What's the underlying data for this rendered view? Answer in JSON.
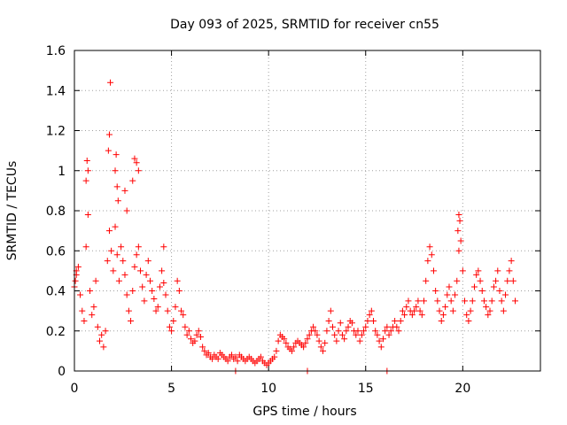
{
  "chart_data": {
    "type": "scatter",
    "title": "Day 093 of 2025, SRMTID for receiver cn55",
    "xlabel": "GPS time / hours",
    "ylabel": "SRMTID / TECUs",
    "xlim": [
      0,
      24
    ],
    "ylim": [
      0,
      1.6
    ],
    "x_ticks": [
      0,
      5,
      10,
      15,
      20
    ],
    "x_tick_labels": [
      "0",
      "5",
      "10",
      "15",
      "20"
    ],
    "y_ticks": [
      0,
      0.2,
      0.4,
      0.6,
      0.8,
      1.0,
      1.2,
      1.4,
      1.6
    ],
    "y_tick_labels": [
      "0",
      "0.2",
      "0.4",
      "0.6",
      "0.8",
      "1",
      "1.2",
      "1.4",
      "1.6"
    ],
    "grid": true,
    "marker": "plus",
    "marker_color": "#ff0000",
    "series": [
      {
        "name": "SRMTID",
        "x": [
          0.0,
          0.1,
          0.2,
          0.3,
          0.4,
          0.5,
          0.6,
          0.7,
          0.8,
          0.9,
          1.0,
          1.1,
          1.2,
          1.3,
          1.4,
          1.5,
          1.6,
          1.7,
          1.8,
          1.9,
          2.0,
          2.1,
          2.2,
          2.3,
          2.4,
          2.5,
          2.6,
          2.7,
          2.8,
          2.9,
          3.0,
          3.1,
          3.2,
          3.3,
          3.4,
          3.5,
          3.6,
          3.7,
          3.8,
          3.9,
          4.0,
          4.1,
          4.2,
          4.3,
          4.4,
          4.5,
          4.6,
          4.7,
          4.8,
          4.9,
          5.0,
          5.1,
          5.2,
          5.3,
          5.4,
          5.5,
          5.6,
          5.7,
          5.8,
          5.9,
          6.0,
          6.1,
          6.2,
          6.3,
          6.4,
          6.5,
          6.6,
          6.7,
          6.8,
          6.9,
          7.0,
          7.1,
          7.2,
          7.3,
          7.4,
          7.5,
          7.6,
          7.7,
          7.8,
          7.9,
          8.0,
          8.1,
          8.2,
          8.3,
          8.4,
          8.5,
          8.6,
          8.7,
          8.8,
          8.9,
          9.0,
          9.1,
          9.2,
          9.3,
          9.4,
          9.5,
          9.6,
          9.7,
          9.8,
          9.9,
          10.0,
          10.1,
          10.2,
          10.3,
          10.4,
          10.5,
          10.6,
          10.7,
          10.8,
          10.9,
          11.0,
          11.1,
          11.2,
          11.3,
          11.4,
          11.5,
          11.6,
          11.7,
          11.8,
          11.9,
          12.0,
          12.1,
          12.2,
          12.3,
          12.4,
          12.5,
          12.6,
          12.7,
          12.8,
          12.9,
          13.0,
          13.1,
          13.2,
          13.3,
          13.4,
          13.5,
          13.6,
          13.7,
          13.8,
          13.9,
          14.0,
          14.1,
          14.2,
          14.3,
          14.4,
          14.5,
          14.6,
          14.7,
          14.8,
          14.9,
          15.0,
          15.1,
          15.2,
          15.3,
          15.4,
          15.5,
          15.6,
          15.7,
          15.8,
          15.9,
          16.0,
          16.1,
          16.2,
          16.3,
          16.4,
          16.5,
          16.6,
          16.7,
          16.8,
          16.9,
          17.0,
          17.1,
          17.2,
          17.3,
          17.4,
          17.5,
          17.6,
          17.7,
          17.8,
          17.9,
          18.0,
          18.1,
          18.2,
          18.3,
          18.4,
          18.5,
          18.6,
          18.7,
          18.8,
          18.9,
          19.0,
          19.1,
          19.2,
          19.3,
          19.4,
          19.5,
          19.6,
          19.7,
          19.8,
          19.9,
          20.0,
          20.1,
          20.2,
          20.3,
          20.4,
          20.5,
          20.6,
          20.7,
          20.8,
          20.9,
          21.0,
          21.1,
          21.2,
          21.3,
          21.4,
          21.5,
          21.6,
          21.7,
          21.8,
          21.9,
          22.0,
          22.1,
          22.2,
          22.3,
          22.4,
          22.5,
          22.6,
          22.7,
          1.85,
          1.8,
          2.15,
          2.1,
          2.2,
          2.25,
          0.65,
          0.7,
          0.6,
          3.1,
          3.2,
          3.3,
          3.0,
          1.75,
          2.6,
          2.7,
          19.8,
          19.85,
          19.75,
          4.6,
          12.0,
          16.1,
          8.3,
          0.1,
          0.05
        ],
        "y": [
          0.42,
          0.48,
          0.52,
          0.38,
          0.3,
          0.25,
          0.62,
          0.78,
          0.4,
          0.28,
          0.32,
          0.45,
          0.22,
          0.15,
          0.18,
          0.12,
          0.2,
          0.55,
          0.7,
          0.6,
          0.5,
          0.72,
          0.58,
          0.45,
          0.62,
          0.55,
          0.48,
          0.38,
          0.3,
          0.25,
          0.4,
          0.52,
          0.58,
          0.62,
          0.5,
          0.42,
          0.35,
          0.48,
          0.55,
          0.45,
          0.4,
          0.36,
          0.3,
          0.32,
          0.42,
          0.5,
          0.44,
          0.38,
          0.3,
          0.22,
          0.2,
          0.25,
          0.32,
          0.45,
          0.4,
          0.3,
          0.28,
          0.22,
          0.18,
          0.2,
          0.16,
          0.14,
          0.15,
          0.18,
          0.2,
          0.17,
          0.12,
          0.1,
          0.08,
          0.09,
          0.07,
          0.06,
          0.08,
          0.07,
          0.06,
          0.09,
          0.08,
          0.07,
          0.06,
          0.05,
          0.07,
          0.08,
          0.06,
          0.07,
          0.05,
          0.08,
          0.07,
          0.06,
          0.05,
          0.06,
          0.07,
          0.06,
          0.05,
          0.04,
          0.05,
          0.06,
          0.07,
          0.05,
          0.04,
          0.03,
          0.04,
          0.05,
          0.06,
          0.07,
          0.1,
          0.15,
          0.18,
          0.17,
          0.16,
          0.14,
          0.12,
          0.11,
          0.1,
          0.12,
          0.14,
          0.15,
          0.14,
          0.13,
          0.12,
          0.14,
          0.16,
          0.18,
          0.2,
          0.22,
          0.2,
          0.18,
          0.15,
          0.12,
          0.1,
          0.14,
          0.2,
          0.25,
          0.3,
          0.22,
          0.18,
          0.15,
          0.2,
          0.24,
          0.18,
          0.16,
          0.2,
          0.22,
          0.25,
          0.24,
          0.2,
          0.18,
          0.2,
          0.15,
          0.18,
          0.2,
          0.22,
          0.25,
          0.28,
          0.3,
          0.25,
          0.2,
          0.18,
          0.15,
          0.12,
          0.16,
          0.2,
          0.22,
          0.18,
          0.2,
          0.22,
          0.25,
          0.22,
          0.2,
          0.25,
          0.3,
          0.28,
          0.32,
          0.35,
          0.3,
          0.28,
          0.3,
          0.32,
          0.35,
          0.3,
          0.28,
          0.35,
          0.45,
          0.55,
          0.62,
          0.58,
          0.5,
          0.4,
          0.35,
          0.3,
          0.25,
          0.28,
          0.32,
          0.38,
          0.42,
          0.35,
          0.3,
          0.38,
          0.45,
          0.6,
          0.65,
          0.5,
          0.35,
          0.28,
          0.25,
          0.3,
          0.35,
          0.42,
          0.48,
          0.5,
          0.45,
          0.4,
          0.35,
          0.32,
          0.28,
          0.3,
          0.35,
          0.42,
          0.45,
          0.5,
          0.4,
          0.35,
          0.3,
          0.38,
          0.45,
          0.5,
          0.55,
          0.45,
          0.35,
          1.44,
          1.18,
          1.08,
          1.0,
          0.92,
          0.85,
          1.05,
          1.0,
          0.95,
          1.06,
          1.04,
          1.0,
          0.95,
          1.1,
          0.9,
          0.8,
          0.78,
          0.75,
          0.7,
          0.62,
          0.0,
          0.0,
          0.0,
          0.5,
          0.45
        ]
      }
    ]
  }
}
